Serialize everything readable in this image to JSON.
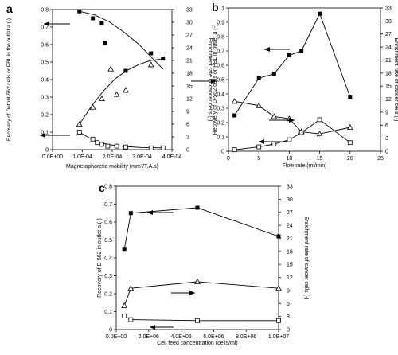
{
  "chart_data": [
    {
      "panel": "a",
      "type": "scatter",
      "xlabel": "Magnetophoretic mobility (mm³/T.A.s)",
      "ylabel": "Recovery of Detroit-562 cells or PBL in the outlet a (-)",
      "ylabel2": "Enrichment rate of cancer cells (-)",
      "xlim": [
        0,
        0.0004
      ],
      "ylim": [
        0,
        0.8
      ],
      "y2lim": [
        0,
        33
      ],
      "xticks": [
        "0.0E+00",
        "1.0E-04",
        "2.0E-04",
        "3.0E-04",
        "4.0E-04"
      ],
      "yticks": [
        "0",
        "0.1",
        "0.2",
        "0.3",
        "0.4",
        "0.5",
        "0.6",
        "0.7",
        "0.8"
      ],
      "y2ticks": [
        "0",
        "3",
        "6",
        "9",
        "12",
        "15",
        "18",
        "21",
        "24",
        "27",
        "30",
        "33"
      ],
      "series": [
        {
          "marker": "filled-square",
          "axis": "left",
          "x": [
            9e-05,
            0.000135,
            0.000165,
            0.000175,
            0.000245,
            0.00033,
            0.00037
          ],
          "y": [
            0.79,
            0.75,
            0.72,
            0.61,
            0.45,
            0.55,
            0.52
          ],
          "fit_x": [
            9e-05,
            0.00014,
            0.00019,
            0.00024,
            0.00029,
            0.00033,
            0.00037
          ],
          "fit_y": [
            0.79,
            0.77,
            0.73,
            0.67,
            0.6,
            0.53,
            0.46
          ]
        },
        {
          "marker": "open-triangle",
          "axis": "right",
          "x": [
            9e-05,
            0.000135,
            0.000165,
            0.000195,
            0.000215,
            0.000245,
            0.00033
          ],
          "y": [
            6,
            10,
            12,
            19,
            13,
            14,
            20
          ],
          "fit_x": [
            9e-05,
            0.00013,
            0.00017,
            0.00021,
            0.00025,
            0.00029,
            0.00033,
            0.00037
          ],
          "fit_y": [
            6,
            10.2,
            13.8,
            16.7,
            18.7,
            20.1,
            21,
            21.4
          ]
        },
        {
          "marker": "open-square",
          "axis": "left",
          "x": [
            9e-05,
            0.000135,
            0.00015,
            0.000165,
            0.000185,
            0.000215,
            0.000245,
            0.00033,
            0.00037
          ],
          "y": [
            0.1,
            0.06,
            0.04,
            0.03,
            0.02,
            0.02,
            0.015,
            0.01,
            0.01
          ],
          "fit_x": [
            9e-05,
            0.00012,
            0.00015,
            0.00019,
            0.00024,
            0.0003,
            0.00037
          ],
          "fit_y": [
            0.1,
            0.07,
            0.045,
            0.028,
            0.018,
            0.012,
            0.01
          ]
        }
      ]
    },
    {
      "panel": "b",
      "type": "line",
      "xlabel": "Flow rate (ml/min)",
      "ylabel": "Recovery of D-562 cells or PBL in outlet a (-)",
      "ylabel2": "Enrichment rate of cancer cells (-)",
      "xlim": [
        0,
        25
      ],
      "ylim": [
        0,
        1
      ],
      "y2lim": [
        0,
        33
      ],
      "xticks": [
        "0",
        "5",
        "10",
        "15",
        "20",
        "25"
      ],
      "yticks": [
        "0",
        "0.1",
        "0.2",
        "0.3",
        "0.4",
        "0.5",
        "0.6",
        "0.7",
        "0.8",
        "0.9",
        "1"
      ],
      "y2ticks": [
        "0",
        "3",
        "6",
        "9",
        "12",
        "15",
        "18",
        "21",
        "24",
        "27",
        "30",
        "33"
      ],
      "series": [
        {
          "marker": "filled-square",
          "axis": "left",
          "x": [
            1,
            5,
            7.5,
            10,
            12,
            15,
            20
          ],
          "y": [
            0.25,
            0.51,
            0.54,
            0.67,
            0.7,
            0.96,
            0.38
          ]
        },
        {
          "marker": "open-triangle",
          "axis": "right",
          "x": [
            1,
            5,
            7.5,
            10,
            12,
            15,
            20
          ],
          "y": [
            11.5,
            10.5,
            8,
            7.5,
            4.5,
            4,
            5.5
          ]
        },
        {
          "marker": "open-square",
          "axis": "left",
          "x": [
            1,
            5,
            7.5,
            10,
            12,
            15,
            20
          ],
          "y": [
            0.01,
            0.03,
            0.05,
            0.08,
            0.13,
            0.22,
            0.06
          ]
        }
      ]
    },
    {
      "panel": "c",
      "type": "line",
      "xlabel": "Cell feed concentration  (cells/ml)",
      "ylabel": "Recovery of D-562 in outlet a (-)",
      "ylabel2": "Enrichment rate of cancer cells (-)",
      "xlim": [
        0,
        10000000
      ],
      "ylim": [
        0,
        0.8
      ],
      "y2lim": [
        0,
        33
      ],
      "xticks": [
        "0.0E+00",
        "2.0E+06",
        "4.0E+06",
        "6.0E+06",
        "8.0E+06",
        "1.0E+07"
      ],
      "yticks": [
        "0",
        "0.1",
        "0.2",
        "0.3",
        "0.4",
        "0.5",
        "0.6",
        "0.7",
        "0.8"
      ],
      "y2ticks": [
        "0",
        "3",
        "6",
        "9",
        "12",
        "15",
        "18",
        "21",
        "24",
        "27",
        "30",
        "33"
      ],
      "series": [
        {
          "marker": "filled-square",
          "axis": "left",
          "x": [
            500000,
            900000,
            5000000,
            10000000
          ],
          "y": [
            0.45,
            0.65,
            0.68,
            0.52
          ]
        },
        {
          "marker": "open-triangle",
          "axis": "right",
          "x": [
            500000,
            900000,
            5000000,
            10000000
          ],
          "y": [
            5.5,
            9.5,
            11,
            9.5
          ]
        },
        {
          "marker": "open-square",
          "axis": "left",
          "x": [
            500000,
            900000,
            5000000,
            10000000
          ],
          "y": [
            0.075,
            0.055,
            0.05,
            0.05
          ]
        }
      ]
    }
  ]
}
